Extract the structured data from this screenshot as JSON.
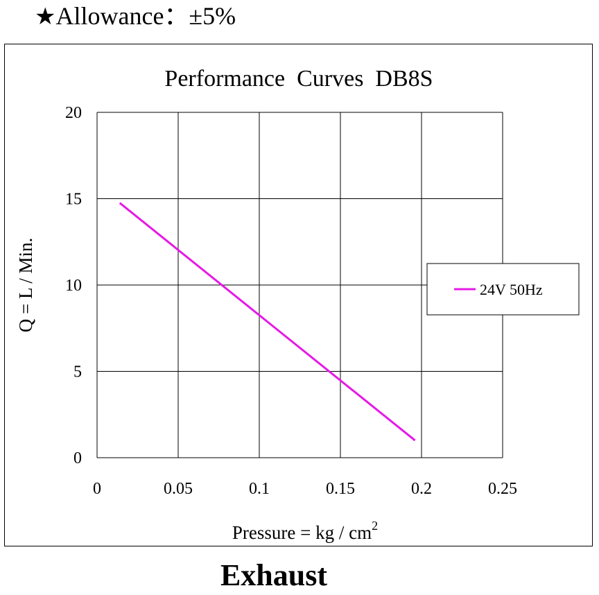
{
  "header": {
    "star_icon": "black-star",
    "allowance_text": "Allowance：±5%"
  },
  "footer": {
    "label": "Exhaust"
  },
  "chart_data": {
    "type": "line",
    "title": "Performance  Curves  DB8S",
    "xlabel": "Pressure = kg / cm",
    "xlabel_superscript": "2",
    "ylabel": "Q = L / Min.",
    "xlim": [
      0,
      0.25
    ],
    "ylim": [
      0,
      20
    ],
    "x_ticks": [
      "0",
      "0.05",
      "0.1",
      "0.15",
      "0.2",
      "0.25"
    ],
    "y_ticks": [
      "0",
      "5",
      "10",
      "15",
      "20"
    ],
    "grid": true,
    "legend_position": "right",
    "series": [
      {
        "name": "24V 50Hz",
        "color": "#e619e6",
        "x": [
          0.014,
          0.196
        ],
        "y": [
          14.75,
          1.0
        ]
      }
    ]
  }
}
